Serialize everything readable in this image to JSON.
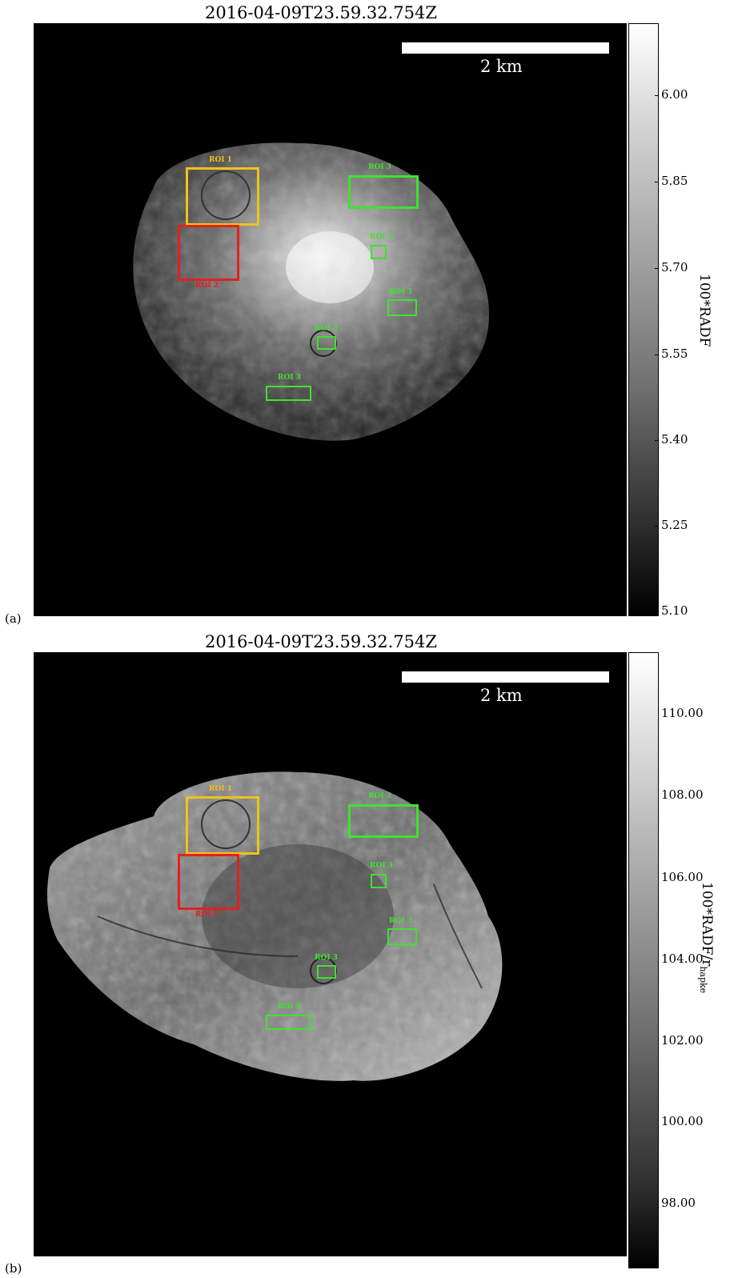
{
  "panels": {
    "a": {
      "letter": "(a)",
      "title": "2016-04-09T23.59.32.754Z",
      "scale_label": "2 km",
      "colorbar_label": "100*RADF",
      "colorbar_ticks": [
        "6.00",
        "5.85",
        "5.70",
        "5.55",
        "5.40",
        "5.25",
        "5.10"
      ],
      "rois": {
        "roi1": "ROI 1",
        "roi2": "ROI 2",
        "g1": "ROI 3",
        "g2": "ROI 3",
        "g3": "ROI 3",
        "g4": "ROI 3",
        "g5": "ROI 3"
      }
    },
    "b": {
      "letter": "(b)",
      "title": "2016-04-09T23.59.32.754Z",
      "scale_label": "2 km",
      "colorbar_label_main": "100*RADF/",
      "colorbar_label_r": "r",
      "colorbar_label_sub": "hapke",
      "colorbar_ticks": [
        "110.00",
        "108.00",
        "106.00",
        "104.00",
        "102.00",
        "100.00",
        "98.00"
      ],
      "rois": {
        "roi1": "ROI 1",
        "roi2": "ROI 2",
        "g1": "ROI 3",
        "g2": "ROI 3",
        "g3": "ROI 3",
        "g4": "ROI 3",
        "g5": "ROI 3"
      }
    }
  },
  "colors": {
    "roi1": "#f2c218",
    "roi2": "#e3211c",
    "roi3": "#3ee32d"
  }
}
